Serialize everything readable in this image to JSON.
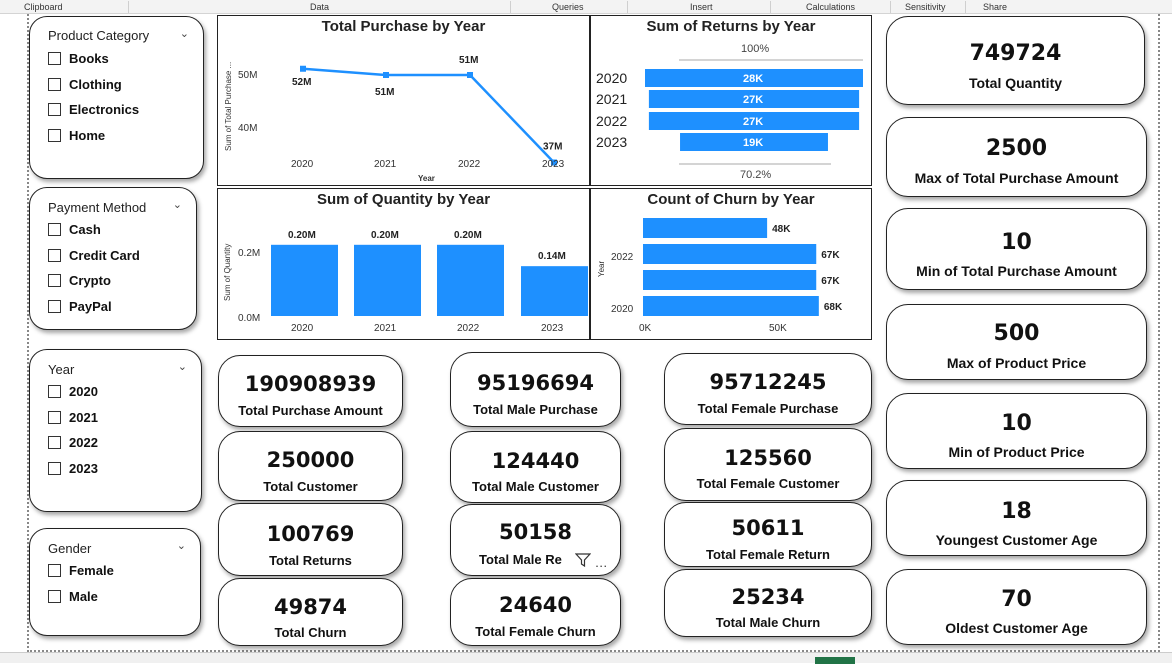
{
  "ribbon": {
    "groups": [
      "Clipboard",
      "Data",
      "Queries",
      "Insert",
      "Calculations",
      "Sensitivity",
      "Share"
    ]
  },
  "slicers": {
    "product_category": {
      "title": "Product Category",
      "items": [
        "Books",
        "Clothing",
        "Electronics",
        "Home"
      ]
    },
    "payment_method": {
      "title": "Payment Method",
      "items": [
        "Cash",
        "Credit Card",
        "Crypto",
        "PayPal"
      ]
    },
    "year": {
      "title": "Year",
      "items": [
        "2020",
        "2021",
        "2022",
        "2023"
      ]
    },
    "gender": {
      "title": "Gender",
      "items": [
        "Female",
        "Male"
      ]
    }
  },
  "charts": {
    "purchase_by_year": {
      "title": "Total Purchase by Year",
      "ylabel": "Sum of Total Purchase ...",
      "xlabel": "Year",
      "y_ticks": [
        "50M",
        "40M"
      ],
      "x_ticks": [
        "2020",
        "2021",
        "2022",
        "2023"
      ],
      "data_labels": [
        "52M",
        "51M",
        "51M",
        "37M"
      ]
    },
    "returns_by_year": {
      "title": "Sum of Returns by Year",
      "top_pct": "100%",
      "bottom_pct": "70.2%",
      "categories": [
        "2020",
        "2021",
        "2022",
        "2023"
      ],
      "data_labels": [
        "28K",
        "27K",
        "27K",
        "19K"
      ]
    },
    "quantity_by_year": {
      "title": "Sum of Quantity by Year",
      "ylabel": "Sum of Quantity",
      "y_ticks": [
        "0.2M",
        "0.0M"
      ],
      "x_ticks": [
        "2020",
        "2021",
        "2022",
        "2023"
      ],
      "data_labels": [
        "0.20M",
        "0.20M",
        "0.20M",
        "0.14M"
      ]
    },
    "churn_by_year": {
      "title": "Count of Churn by Year",
      "ylabel": "Year",
      "y_ticks": [
        "2022",
        "2020"
      ],
      "x_ticks": [
        "0K",
        "50K"
      ],
      "data_labels": [
        "48K",
        "67K",
        "67K",
        "68K"
      ]
    }
  },
  "chart_data": [
    {
      "type": "line",
      "title": "Total Purchase by Year",
      "xlabel": "Year",
      "ylabel": "Sum of Total Purchase ...",
      "x": [
        "2020",
        "2021",
        "2022",
        "2023"
      ],
      "series": [
        {
          "values": [
            52000000,
            51000000,
            51000000,
            37000000
          ]
        }
      ],
      "ylim": [
        35000000,
        55000000
      ]
    },
    {
      "type": "bar",
      "title": "Sum of Returns by Year",
      "orientation": "horizontal-funnel",
      "categories": [
        "2020",
        "2021",
        "2022",
        "2023"
      ],
      "values": [
        28000,
        27000,
        27000,
        19000
      ]
    },
    {
      "type": "bar",
      "title": "Sum of Quantity by Year",
      "ylabel": "Sum of Quantity",
      "categories": [
        "2020",
        "2021",
        "2022",
        "2023"
      ],
      "values": [
        200000,
        200000,
        200000,
        140000
      ],
      "ylim": [
        0,
        250000
      ]
    },
    {
      "type": "bar",
      "title": "Count of Churn by Year",
      "orientation": "horizontal",
      "ylabel": "Year",
      "categories": [
        "2023",
        "2022",
        "2021",
        "2020"
      ],
      "values": [
        48000,
        67000,
        67000,
        68000
      ],
      "xlim": [
        0,
        70000
      ]
    }
  ],
  "kpis": {
    "col1": [
      {
        "value": "190908939",
        "label": "Total Purchase Amount"
      },
      {
        "value": "250000",
        "label": "Total Customer"
      },
      {
        "value": "100769",
        "label": "Total Returns"
      },
      {
        "value": "49874",
        "label": "Total Churn"
      }
    ],
    "col2": [
      {
        "value": "95196694",
        "label": "Total Male Purchase"
      },
      {
        "value": "124440",
        "label": "Total Male Customer"
      },
      {
        "value": "50158",
        "label": "Total Male Re"
      },
      {
        "value": "24640",
        "label": "Total Female Churn"
      }
    ],
    "col3": [
      {
        "value": "95712245",
        "label": "Total Female Purchase"
      },
      {
        "value": "125560",
        "label": "Total Female Customer"
      },
      {
        "value": "50611",
        "label": "Total Female Return"
      },
      {
        "value": "25234",
        "label": "Total Male Churn"
      }
    ],
    "right": [
      {
        "value": "749724",
        "label": "Total Quantity"
      },
      {
        "value": "2500",
        "label": "Max of Total Purchase Amount"
      },
      {
        "value": "10",
        "label": "Min of Total Purchase Amount"
      },
      {
        "value": "500",
        "label": "Max of Product Price"
      },
      {
        "value": "10",
        "label": "Min of Product Price"
      },
      {
        "value": "18",
        "label": "Youngest Customer Age"
      },
      {
        "value": "70",
        "label": "Oldest Customer Age"
      }
    ]
  },
  "overlay": {
    "more_label": "…"
  },
  "colors": {
    "accent": "#1e90ff",
    "border": "#222222"
  }
}
